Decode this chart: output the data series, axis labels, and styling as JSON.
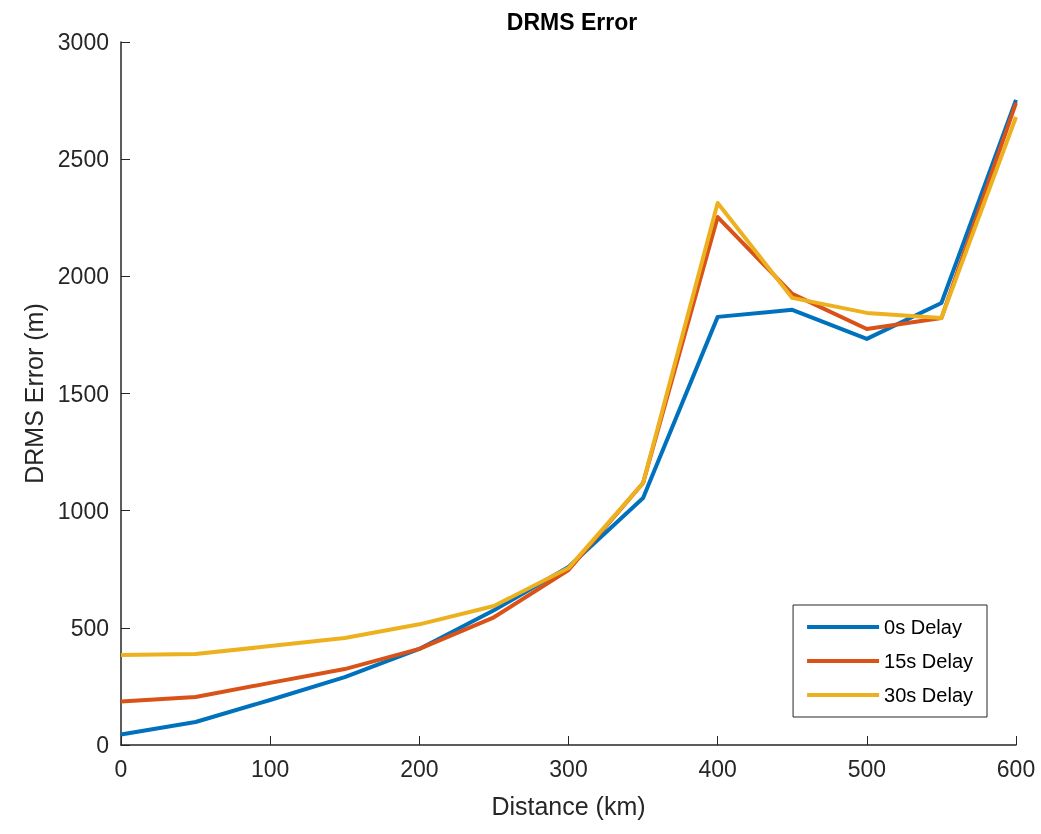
{
  "chart_data": {
    "type": "line",
    "title": "DRMS Error",
    "xlabel": "Distance (km)",
    "ylabel": "DRMS Error (m)",
    "x": [
      0,
      50,
      100,
      150,
      200,
      250,
      300,
      350,
      400,
      450,
      500,
      550,
      600
    ],
    "series": [
      {
        "name": "0s Delay",
        "color": "#0072bd",
        "values": [
          45,
          98,
          192,
          290,
          410,
          575,
          760,
          1054,
          1827,
          1857,
          1733,
          1886,
          2753
        ]
      },
      {
        "name": "15s Delay",
        "color": "#d95319",
        "values": [
          186,
          205,
          265,
          324,
          410,
          545,
          747,
          1118,
          2253,
          1925,
          1775,
          1822,
          2740
        ]
      },
      {
        "name": "30s Delay",
        "color": "#edb120",
        "values": [
          384,
          388,
          422,
          457,
          515,
          593,
          755,
          1118,
          2313,
          1908,
          1844,
          1822,
          2680
        ]
      }
    ],
    "xlim": [
      0,
      600
    ],
    "xticks": [
      0,
      100,
      200,
      300,
      400,
      500,
      600
    ],
    "ylim": [
      0,
      3000
    ],
    "yticks": [
      0,
      500,
      1000,
      1500,
      2000,
      2500,
      3000
    ],
    "grid": false,
    "legend": "bottom right",
    "marker": "none",
    "line_style": "solid"
  }
}
